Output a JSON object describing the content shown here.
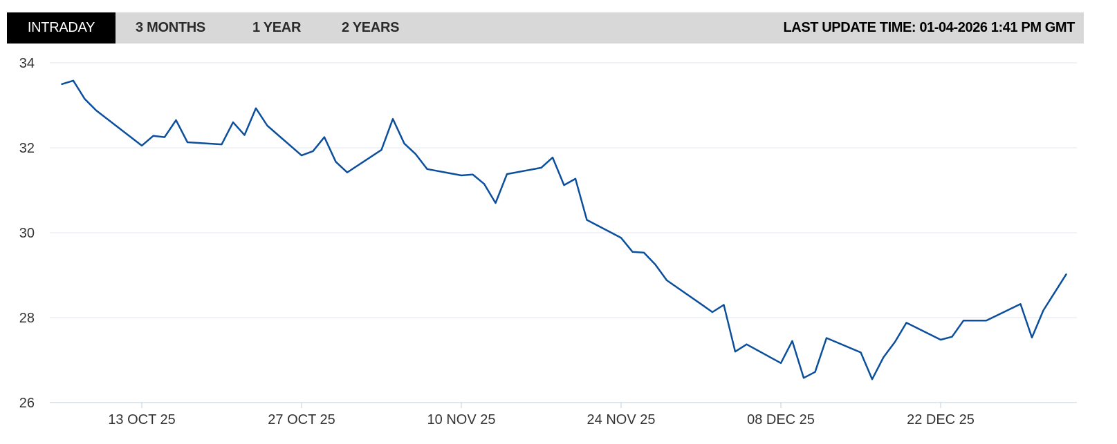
{
  "tabs": [
    {
      "label": "INTRADAY",
      "active": true
    },
    {
      "label": "3 MONTHS",
      "active": false
    },
    {
      "label": "1 YEAR",
      "active": false
    },
    {
      "label": "2 YEARS",
      "active": false
    }
  ],
  "last_update": "LAST UPDATE TIME: 01-04-2026 1:41 PM GMT",
  "colors": {
    "line": "#0b4f9c",
    "grid": "#dfe6ee",
    "tab_active_bg": "#000000",
    "tabbar_bg": "#d8d8d8"
  },
  "chart_data": {
    "type": "line",
    "title": "",
    "xlabel": "",
    "ylabel": "",
    "ylim": [
      26,
      34
    ],
    "yticks": [
      26,
      28,
      30,
      32,
      34
    ],
    "xticks": [
      {
        "label": "13 OCT 25",
        "date": "2025-10-13"
      },
      {
        "label": "27 OCT 25",
        "date": "2025-10-27"
      },
      {
        "label": "10 NOV 25",
        "date": "2025-11-10"
      },
      {
        "label": "24 NOV 25",
        "date": "2025-11-24"
      },
      {
        "label": "08 DEC 25",
        "date": "2025-12-08"
      },
      {
        "label": "22 DEC 25",
        "date": "2025-12-22"
      }
    ],
    "grid": true,
    "legend": "none",
    "series": [
      {
        "points": [
          [
            "2025-10-06",
            33.5
          ],
          [
            "2025-10-07",
            33.58
          ],
          [
            "2025-10-08",
            33.15
          ],
          [
            "2025-10-09",
            32.88
          ],
          [
            "2025-10-13",
            32.05
          ],
          [
            "2025-10-14",
            32.28
          ],
          [
            "2025-10-15",
            32.25
          ],
          [
            "2025-10-16",
            32.65
          ],
          [
            "2025-10-17",
            32.13
          ],
          [
            "2025-10-20",
            32.08
          ],
          [
            "2025-10-21",
            32.6
          ],
          [
            "2025-10-22",
            32.3
          ],
          [
            "2025-10-23",
            32.93
          ],
          [
            "2025-10-24",
            32.52
          ],
          [
            "2025-10-27",
            31.82
          ],
          [
            "2025-10-28",
            31.92
          ],
          [
            "2025-10-29",
            32.25
          ],
          [
            "2025-10-30",
            31.67
          ],
          [
            "2025-10-31",
            31.42
          ],
          [
            "2025-11-03",
            31.95
          ],
          [
            "2025-11-04",
            32.68
          ],
          [
            "2025-11-05",
            32.1
          ],
          [
            "2025-11-06",
            31.85
          ],
          [
            "2025-11-07",
            31.5
          ],
          [
            "2025-11-10",
            31.35
          ],
          [
            "2025-11-11",
            31.37
          ],
          [
            "2025-11-12",
            31.15
          ],
          [
            "2025-11-13",
            30.7
          ],
          [
            "2025-11-14",
            31.38
          ],
          [
            "2025-11-17",
            31.53
          ],
          [
            "2025-11-18",
            31.77
          ],
          [
            "2025-11-19",
            31.12
          ],
          [
            "2025-11-20",
            31.27
          ],
          [
            "2025-11-21",
            30.3
          ],
          [
            "2025-11-24",
            29.88
          ],
          [
            "2025-11-25",
            29.55
          ],
          [
            "2025-11-26",
            29.53
          ],
          [
            "2025-11-27",
            29.25
          ],
          [
            "2025-11-28",
            28.88
          ],
          [
            "2025-12-01",
            28.32
          ],
          [
            "2025-12-02",
            28.13
          ],
          [
            "2025-12-03",
            28.3
          ],
          [
            "2025-12-04",
            27.2
          ],
          [
            "2025-12-05",
            27.37
          ],
          [
            "2025-12-08",
            26.93
          ],
          [
            "2025-12-09",
            27.45
          ],
          [
            "2025-12-10",
            26.58
          ],
          [
            "2025-12-11",
            26.72
          ],
          [
            "2025-12-12",
            27.52
          ],
          [
            "2025-12-15",
            27.18
          ],
          [
            "2025-12-16",
            26.55
          ],
          [
            "2025-12-17",
            27.07
          ],
          [
            "2025-12-18",
            27.43
          ],
          [
            "2025-12-19",
            27.88
          ],
          [
            "2025-12-22",
            27.48
          ],
          [
            "2025-12-23",
            27.55
          ],
          [
            "2025-12-24",
            27.93
          ],
          [
            "2025-12-26",
            27.93
          ],
          [
            "2025-12-29",
            28.32
          ],
          [
            "2025-12-30",
            27.53
          ],
          [
            "2025-12-31",
            28.17
          ],
          [
            "2026-01-02",
            29.02
          ]
        ]
      }
    ]
  }
}
